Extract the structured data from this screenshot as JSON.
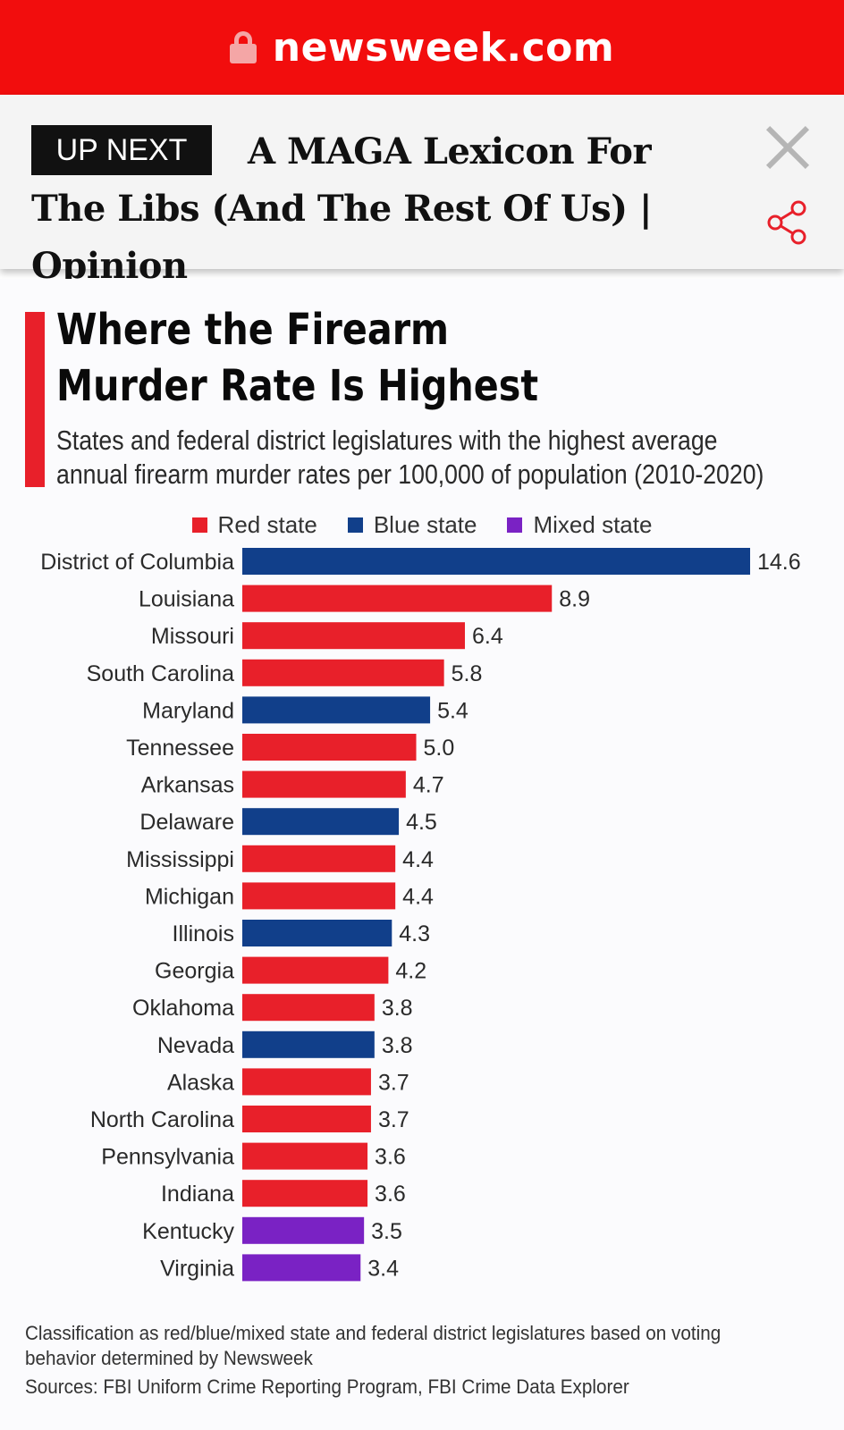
{
  "browser": {
    "url": "newsweek.com",
    "icon": "lock-icon"
  },
  "up_next": {
    "badge": "UP NEXT",
    "headline": "A MAGA Lexicon For The Libs (And The Rest Of Us) | Opinion",
    "close_icon": "close-icon",
    "share_icon": "share-icon"
  },
  "colors": {
    "red": "#e8202a",
    "blue": "#113f8a",
    "purple": "#7a22c4",
    "topbar": "#f20d0d"
  },
  "chart_data": {
    "type": "bar",
    "orientation": "horizontal",
    "title": "Where the Firearm Murder Rate Is Highest",
    "subtitle": "States and federal district legislatures with the highest average annual firearm murder rates per 100,000 of population (2010-2020)",
    "legend": [
      {
        "name": "Red state",
        "color": "#e8202a"
      },
      {
        "name": "Blue state",
        "color": "#113f8a"
      },
      {
        "name": "Mixed state",
        "color": "#7a22c4"
      }
    ],
    "legend_position": "top",
    "grid": false,
    "xlim": [
      0,
      14.6
    ],
    "categories": [
      "District of Columbia",
      "Louisiana",
      "Missouri",
      "South Carolina",
      "Maryland",
      "Tennessee",
      "Arkansas",
      "Delaware",
      "Mississippi",
      "Michigan",
      "Illinois",
      "Georgia",
      "Oklahoma",
      "Nevada",
      "Alaska",
      "North Carolina",
      "Pennsylvania",
      "Indiana",
      "Kentucky",
      "Virginia"
    ],
    "values": [
      14.6,
      8.9,
      6.4,
      5.8,
      5.4,
      5.0,
      4.7,
      4.5,
      4.4,
      4.4,
      4.3,
      4.2,
      3.8,
      3.8,
      3.7,
      3.7,
      3.6,
      3.6,
      3.5,
      3.4
    ],
    "value_labels": [
      "14.6",
      "8.9",
      "6.4",
      "5.8",
      "5.4",
      "5.0",
      "4.7",
      "4.5",
      "4.4",
      "4.4",
      "4.3",
      "4.2",
      "3.8",
      "3.8",
      "3.7",
      "3.7",
      "3.6",
      "3.6",
      "3.5",
      "3.4"
    ],
    "classification": [
      "Blue state",
      "Red state",
      "Red state",
      "Red state",
      "Blue state",
      "Red state",
      "Red state",
      "Blue state",
      "Red state",
      "Red state",
      "Blue state",
      "Red state",
      "Red state",
      "Blue state",
      "Red state",
      "Red state",
      "Red state",
      "Red state",
      "Mixed state",
      "Mixed state"
    ],
    "footnote": "Classification as red/blue/mixed state and federal district legislatures based on voting behavior determined by Newsweek",
    "sources": "Sources: FBI Uniform Crime Reporting Program, FBI Crime Data Explorer"
  }
}
